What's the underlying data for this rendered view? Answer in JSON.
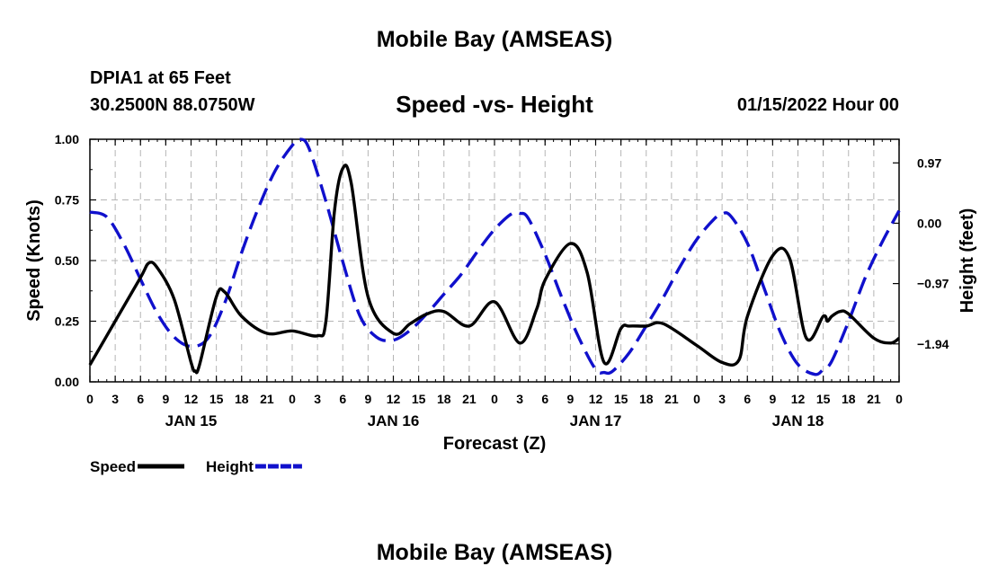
{
  "header": {
    "title": "Mobile Bay (AMSEAS)",
    "station": "DPIA1 at 65 Feet",
    "coords": "30.2500N  88.0750W",
    "subtitle": "Speed -vs- Height",
    "datetime": "01/15/2022 Hour 00"
  },
  "footer": {
    "title": "Mobile Bay (AMSEAS)"
  },
  "chart_data": {
    "type": "line",
    "title": "Speed -vs- Height",
    "xlabel": "Forecast (Z)",
    "ylabel": "Speed (Knots)",
    "y2label": "Height (feet)",
    "xlim": [
      0,
      96
    ],
    "ylim": [
      0,
      1
    ],
    "y2lim": [
      -2.55,
      1.35
    ],
    "x_tick_hours": [
      0,
      3,
      6,
      9,
      12,
      15,
      18,
      21,
      24,
      27,
      30,
      33,
      36,
      39,
      42,
      45,
      48,
      51,
      54,
      57,
      60,
      63,
      66,
      69,
      72,
      75,
      78,
      81,
      84,
      87,
      90,
      93,
      96
    ],
    "x_tick_labels": [
      "0",
      "3",
      "6",
      "9",
      "12",
      "15",
      "18",
      "21",
      "0",
      "3",
      "6",
      "9",
      "12",
      "15",
      "18",
      "21",
      "0",
      "3",
      "6",
      "9",
      "12",
      "15",
      "18",
      "21",
      "0",
      "3",
      "6",
      "9",
      "12",
      "15",
      "18",
      "21",
      "0"
    ],
    "date_labels": [
      {
        "hour": 12,
        "label": "JAN 15"
      },
      {
        "hour": 36,
        "label": "JAN 16"
      },
      {
        "hour": 60,
        "label": "JAN 17"
      },
      {
        "hour": 84,
        "label": "JAN 18"
      }
    ],
    "y_ticks": [
      0,
      0.25,
      0.5,
      0.75,
      1.0
    ],
    "y_tick_labels": [
      "0.00",
      "0.25",
      "0.50",
      "0.75",
      "1.00"
    ],
    "y2_ticks": [
      0.97,
      0.0,
      -0.97,
      -1.94
    ],
    "y2_tick_labels": [
      "0.97",
      "0.00",
      "−0.97",
      "−1.94"
    ],
    "grid": true,
    "legend_position": "bottom-left",
    "series": [
      {
        "name": "Speed",
        "axis": "left",
        "color": "#000000",
        "dash": "solid",
        "x": [
          0,
          3,
          6,
          7,
          8,
          10,
          12,
          12.5,
          13,
          15,
          16,
          18,
          21,
          24,
          27,
          28,
          29,
          30,
          31,
          33,
          36,
          38,
          40,
          42,
          45,
          48,
          51,
          53,
          54,
          57,
          59,
          61,
          63,
          64,
          66,
          68,
          72,
          75,
          77,
          78,
          81,
          83,
          85,
          87,
          87.5,
          88,
          89,
          90,
          93,
          95,
          96
        ],
        "values": [
          0.07,
          0.25,
          0.43,
          0.49,
          0.47,
          0.34,
          0.08,
          0.045,
          0.07,
          0.35,
          0.37,
          0.27,
          0.2,
          0.21,
          0.19,
          0.25,
          0.7,
          0.88,
          0.82,
          0.35,
          0.2,
          0.24,
          0.28,
          0.29,
          0.23,
          0.33,
          0.16,
          0.3,
          0.42,
          0.57,
          0.45,
          0.08,
          0.22,
          0.23,
          0.23,
          0.24,
          0.15,
          0.08,
          0.09,
          0.27,
          0.52,
          0.51,
          0.18,
          0.27,
          0.25,
          0.27,
          0.29,
          0.28,
          0.18,
          0.16,
          0.18
        ]
      },
      {
        "name": "Height",
        "axis": "right",
        "color": "#1010cc",
        "dash": "dashed",
        "x": [
          0,
          2,
          4,
          6,
          8,
          10,
          12,
          14,
          16,
          18,
          20,
          22,
          24,
          25,
          26,
          28,
          30,
          32,
          34,
          36,
          38,
          40,
          42,
          44,
          46,
          48,
          50,
          51,
          52,
          54,
          56,
          58,
          60,
          61,
          62,
          64,
          66,
          68,
          70,
          72,
          74,
          75,
          76,
          78,
          80,
          82,
          84,
          86,
          87,
          88,
          90,
          92,
          94,
          96
        ],
        "values": [
          0.18,
          0.1,
          -0.33,
          -0.9,
          -1.45,
          -1.83,
          -1.98,
          -1.85,
          -1.28,
          -0.47,
          0.25,
          0.85,
          1.25,
          1.35,
          1.2,
          0.35,
          -0.62,
          -1.48,
          -1.83,
          -1.88,
          -1.72,
          -1.45,
          -1.14,
          -0.83,
          -0.45,
          -0.1,
          0.15,
          0.16,
          0.08,
          -0.5,
          -1.2,
          -1.84,
          -2.35,
          -2.4,
          -2.38,
          -2.08,
          -1.65,
          -1.2,
          -0.7,
          -0.26,
          0.06,
          0.15,
          0.12,
          -0.32,
          -1.05,
          -1.78,
          -2.27,
          -2.43,
          -2.35,
          -2.22,
          -1.58,
          -0.87,
          -0.3,
          0.2
        ]
      }
    ]
  }
}
